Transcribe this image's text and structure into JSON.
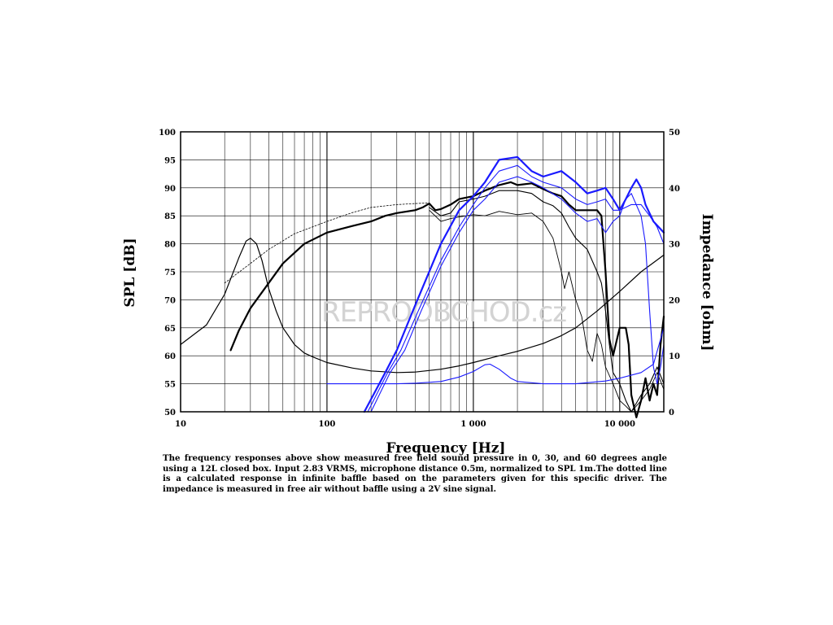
{
  "chart_data": {
    "type": "line",
    "xlabel": "Frequency [Hz]",
    "ylabel": "SPL [dB]",
    "y2label": "Impedance [ohm]",
    "xscale": "log",
    "xlim": [
      10,
      20000
    ],
    "ylim": [
      50,
      100
    ],
    "y2lim": [
      0,
      50
    ],
    "grid": true,
    "x_tick_labels": [
      "10",
      "100",
      "1 000",
      "10 000"
    ],
    "y_tick_labels": [
      "50",
      "55",
      "60",
      "65",
      "70",
      "75",
      "80",
      "85",
      "90",
      "95",
      "100"
    ],
    "y2_tick_labels": [
      "0",
      "10",
      "20",
      "30",
      "40",
      "50"
    ],
    "watermark": "REPROOBCHOD.cz",
    "series": [
      {
        "axis": "y2",
        "color": "#000000",
        "width": 1.2,
        "dash": "",
        "points": [
          [
            10,
            12
          ],
          [
            15,
            15.5
          ],
          [
            20,
            21
          ],
          [
            25,
            27.5
          ],
          [
            28,
            30.5
          ],
          [
            30,
            31
          ],
          [
            33,
            30
          ],
          [
            36,
            27
          ],
          [
            40,
            22
          ],
          [
            45,
            18
          ],
          [
            50,
            15
          ],
          [
            60,
            12
          ],
          [
            70,
            10.5
          ],
          [
            80,
            9.8
          ],
          [
            100,
            8.8
          ],
          [
            150,
            7.8
          ],
          [
            200,
            7.3
          ],
          [
            300,
            7
          ],
          [
            400,
            7.1
          ],
          [
            600,
            7.6
          ],
          [
            800,
            8.2
          ],
          [
            1000,
            8.8
          ],
          [
            1500,
            10
          ],
          [
            2000,
            10.8
          ],
          [
            3000,
            12.2
          ],
          [
            4000,
            13.6
          ],
          [
            5000,
            15
          ],
          [
            7000,
            18
          ],
          [
            10000,
            21.5
          ],
          [
            14000,
            25
          ],
          [
            20000,
            28
          ]
        ]
      },
      {
        "axis": "y",
        "color": "#000000",
        "width": 0.8,
        "dash": "2,2",
        "points": [
          [
            20,
            73
          ],
          [
            30,
            76.5
          ],
          [
            40,
            79
          ],
          [
            60,
            81.8
          ],
          [
            100,
            84
          ],
          [
            150,
            85.6
          ],
          [
            200,
            86.5
          ],
          [
            300,
            87
          ],
          [
            400,
            87.2
          ],
          [
            500,
            87.3
          ]
        ]
      },
      {
        "axis": "y",
        "color": "#000000",
        "width": 2.2,
        "dash": "",
        "points": [
          [
            22,
            61
          ],
          [
            25,
            64.5
          ],
          [
            30,
            68.5
          ],
          [
            40,
            73
          ],
          [
            50,
            76.5
          ],
          [
            70,
            80
          ],
          [
            100,
            82
          ],
          [
            150,
            83.2
          ],
          [
            200,
            84
          ],
          [
            250,
            85
          ],
          [
            300,
            85.5
          ],
          [
            400,
            86
          ],
          [
            450,
            86.5
          ],
          [
            500,
            87.2
          ],
          [
            550,
            86
          ],
          [
            600,
            86.2
          ],
          [
            700,
            87
          ],
          [
            800,
            88
          ],
          [
            1000,
            88.5
          ],
          [
            1200,
            89.5
          ],
          [
            1500,
            90.5
          ],
          [
            1800,
            91
          ],
          [
            2000,
            90.5
          ],
          [
            2500,
            90.8
          ],
          [
            3000,
            89.8
          ],
          [
            3500,
            89
          ],
          [
            4000,
            88.5
          ],
          [
            4500,
            87
          ],
          [
            5000,
            86
          ],
          [
            6000,
            86
          ],
          [
            7000,
            86
          ],
          [
            7500,
            85
          ],
          [
            8000,
            75
          ],
          [
            8500,
            63
          ],
          [
            9000,
            60
          ],
          [
            10000,
            65
          ],
          [
            11000,
            65
          ],
          [
            11500,
            62
          ],
          [
            12000,
            53
          ],
          [
            13000,
            49
          ],
          [
            14000,
            52
          ],
          [
            15000,
            56
          ],
          [
            16000,
            52
          ],
          [
            17000,
            55
          ],
          [
            18000,
            53
          ],
          [
            19000,
            62
          ],
          [
            20000,
            67
          ]
        ]
      },
      {
        "axis": "y",
        "color": "#000000",
        "width": 1.1,
        "dash": "",
        "points": [
          [
            500,
            86.5
          ],
          [
            600,
            85
          ],
          [
            700,
            85.5
          ],
          [
            800,
            87.5
          ],
          [
            1000,
            88
          ],
          [
            1200,
            88.5
          ],
          [
            1500,
            89.5
          ],
          [
            2000,
            89.5
          ],
          [
            2500,
            89
          ],
          [
            3000,
            87.5
          ],
          [
            3500,
            86.8
          ],
          [
            4000,
            85.5
          ],
          [
            4500,
            83
          ],
          [
            5000,
            81
          ],
          [
            6000,
            79
          ],
          [
            7000,
            75
          ],
          [
            7500,
            73
          ],
          [
            8000,
            68
          ],
          [
            8500,
            62
          ],
          [
            9000,
            57
          ],
          [
            10000,
            55
          ],
          [
            11000,
            52
          ],
          [
            12000,
            50
          ],
          [
            14000,
            53
          ],
          [
            16000,
            55
          ],
          [
            18000,
            58
          ],
          [
            20000,
            55
          ]
        ]
      },
      {
        "axis": "y",
        "color": "#000000",
        "width": 0.9,
        "dash": "",
        "points": [
          [
            500,
            86
          ],
          [
            600,
            84
          ],
          [
            700,
            84.5
          ],
          [
            800,
            84.8
          ],
          [
            1000,
            85.2
          ],
          [
            1200,
            85
          ],
          [
            1500,
            85.8
          ],
          [
            2000,
            85.2
          ],
          [
            2500,
            85.5
          ],
          [
            3000,
            84
          ],
          [
            3500,
            81
          ],
          [
            4000,
            75
          ],
          [
            4200,
            72
          ],
          [
            4500,
            75
          ],
          [
            5000,
            70
          ],
          [
            5500,
            67
          ],
          [
            6000,
            61
          ],
          [
            6500,
            59
          ],
          [
            7000,
            64
          ],
          [
            7500,
            62
          ],
          [
            8000,
            58
          ],
          [
            9000,
            55
          ],
          [
            10000,
            52
          ],
          [
            11000,
            51
          ],
          [
            12000,
            50
          ],
          [
            14000,
            52
          ],
          [
            16000,
            54
          ],
          [
            18000,
            57
          ],
          [
            20000,
            54
          ]
        ]
      },
      {
        "axis": "y2",
        "color": "#1a1aff",
        "width": 2.2,
        "dash": "",
        "points": [
          [
            180,
            0
          ],
          [
            250,
            7
          ],
          [
            300,
            11
          ],
          [
            400,
            19
          ],
          [
            600,
            30
          ],
          [
            800,
            36
          ],
          [
            1000,
            38.5
          ],
          [
            1200,
            41
          ],
          [
            1500,
            45
          ],
          [
            2000,
            45.5
          ],
          [
            2500,
            43
          ],
          [
            3000,
            42
          ],
          [
            4000,
            43
          ],
          [
            5000,
            41
          ],
          [
            6000,
            39
          ],
          [
            7000,
            39.5
          ],
          [
            8000,
            40
          ],
          [
            9000,
            38
          ],
          [
            10000,
            36
          ],
          [
            11000,
            38
          ],
          [
            12000,
            40
          ],
          [
            13000,
            41.5
          ],
          [
            14000,
            40
          ],
          [
            15000,
            37
          ],
          [
            17000,
            34
          ],
          [
            20000,
            32
          ]
        ]
      },
      {
        "axis": "y2",
        "color": "#1a1aff",
        "width": 1.1,
        "dash": "",
        "points": [
          [
            190,
            0
          ],
          [
            260,
            7
          ],
          [
            320,
            11
          ],
          [
            420,
            18
          ],
          [
            600,
            27
          ],
          [
            800,
            33
          ],
          [
            1000,
            37
          ],
          [
            1200,
            40
          ],
          [
            1500,
            43
          ],
          [
            2000,
            44
          ],
          [
            2500,
            42
          ],
          [
            3000,
            41
          ],
          [
            4000,
            40
          ],
          [
            5000,
            38
          ],
          [
            6000,
            37
          ],
          [
            7000,
            37.5
          ],
          [
            8000,
            38
          ],
          [
            9000,
            36
          ],
          [
            10000,
            36
          ],
          [
            12000,
            37
          ],
          [
            14000,
            37
          ],
          [
            16000,
            35
          ],
          [
            18000,
            33
          ],
          [
            20000,
            30
          ]
        ]
      },
      {
        "axis": "y2",
        "color": "#1a1aff",
        "width": 1.1,
        "dash": "",
        "points": [
          [
            200,
            0
          ],
          [
            270,
            7
          ],
          [
            340,
            11
          ],
          [
            440,
            18
          ],
          [
            600,
            26
          ],
          [
            800,
            32
          ],
          [
            1000,
            36
          ],
          [
            1200,
            38
          ],
          [
            1500,
            41
          ],
          [
            2000,
            42
          ],
          [
            2500,
            41
          ],
          [
            3000,
            40
          ],
          [
            4000,
            38
          ],
          [
            5000,
            35.5
          ],
          [
            6000,
            34
          ],
          [
            7000,
            34.5
          ],
          [
            8000,
            32
          ],
          [
            9000,
            34
          ],
          [
            10000,
            35
          ],
          [
            11000,
            38
          ],
          [
            12000,
            39
          ],
          [
            14000,
            35
          ],
          [
            15000,
            30
          ],
          [
            16000,
            18
          ],
          [
            17000,
            8
          ],
          [
            18000,
            5
          ],
          [
            19000,
            8
          ],
          [
            20000,
            12
          ]
        ]
      },
      {
        "axis": "y2",
        "color": "#1a1aff",
        "width": 1.1,
        "dash": "",
        "points": [
          [
            100,
            5
          ],
          [
            200,
            5
          ],
          [
            300,
            5
          ],
          [
            400,
            5.1
          ],
          [
            600,
            5.4
          ],
          [
            800,
            6.2
          ],
          [
            1000,
            7.2
          ],
          [
            1200,
            8.4
          ],
          [
            1300,
            8.5
          ],
          [
            1500,
            7.6
          ],
          [
            1800,
            6
          ],
          [
            2000,
            5.4
          ],
          [
            3000,
            5
          ],
          [
            5000,
            5
          ],
          [
            8000,
            5.5
          ],
          [
            10000,
            6
          ],
          [
            14000,
            7
          ],
          [
            17000,
            8.5
          ],
          [
            20000,
            15
          ]
        ]
      }
    ]
  },
  "caption": "The frequency responses above show measured free field sound pressure in 0, 30, and 60 degrees angle using a 12L closed box. Input 2.83 VRMS, microphone distance 0.5m, normalized to SPL 1m.The dotted line is a calculated response in infinite baffle based on the parameters given for this specific driver. The impedance is measured in free air without baffle using a 2V sine signal."
}
